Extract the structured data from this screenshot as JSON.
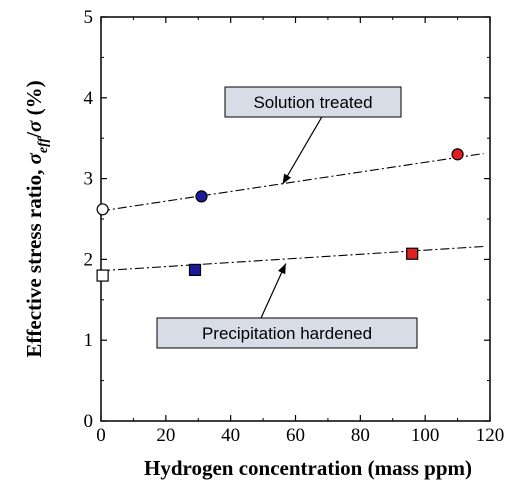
{
  "chart_data": {
    "type": "scatter",
    "title": "",
    "xlabel": "Hydrogen concentration (mass ppm)",
    "ylabel": {
      "prefix": "Effective stress ratio, ",
      "sym1": "σ",
      "sub": "eff",
      "mid": "/",
      "sym2": "σ",
      "suffix": " (%)"
    },
    "xlim": [
      0,
      120
    ],
    "ylim": [
      0,
      5
    ],
    "x_ticks": [
      0,
      20,
      40,
      60,
      80,
      100,
      120
    ],
    "y_ticks": [
      0,
      1,
      2,
      3,
      4,
      5
    ],
    "grid": false,
    "series": [
      {
        "name": "Solution treated",
        "marker": "circle",
        "points": [
          {
            "x": 0.5,
            "y": 2.62,
            "color": "#ffffff"
          },
          {
            "x": 31,
            "y": 2.78,
            "color": "#1a1a9a"
          },
          {
            "x": 110,
            "y": 3.3,
            "color": "#e02020"
          }
        ],
        "trend": {
          "x": [
            0,
            118
          ],
          "y": [
            2.6,
            3.31
          ]
        }
      },
      {
        "name": "Precipitation hardened",
        "marker": "square",
        "points": [
          {
            "x": 0.5,
            "y": 1.8,
            "color": "#ffffff"
          },
          {
            "x": 29,
            "y": 1.87,
            "color": "#1a1a9a"
          },
          {
            "x": 96,
            "y": 2.07,
            "color": "#e02020"
          }
        ],
        "trend": {
          "x": [
            0,
            118
          ],
          "y": [
            1.86,
            2.16
          ]
        }
      }
    ],
    "annotations": [
      {
        "text": "Solution treated",
        "series": 0,
        "target": {
          "x": 56,
          "y": 2.93
        }
      },
      {
        "text": "Precipitation hardened",
        "series": 1,
        "target": {
          "x": 57,
          "y": 1.95
        }
      }
    ]
  }
}
